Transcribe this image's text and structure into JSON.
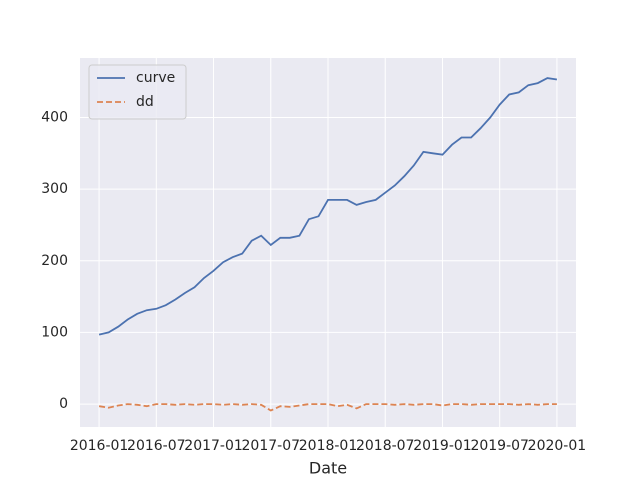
{
  "chart_data": {
    "type": "line",
    "xlabel": "Date",
    "x": [
      "2016-01",
      "2016-02",
      "2016-03",
      "2016-04",
      "2016-05",
      "2016-06",
      "2016-07",
      "2016-08",
      "2016-09",
      "2016-10",
      "2016-11",
      "2016-12",
      "2017-01",
      "2017-02",
      "2017-03",
      "2017-04",
      "2017-05",
      "2017-06",
      "2017-07",
      "2017-08",
      "2017-09",
      "2017-10",
      "2017-11",
      "2017-12",
      "2018-01",
      "2018-02",
      "2018-03",
      "2018-04",
      "2018-05",
      "2018-06",
      "2018-07",
      "2018-08",
      "2018-09",
      "2018-10",
      "2018-11",
      "2018-12",
      "2019-01",
      "2019-02",
      "2019-03",
      "2019-04",
      "2019-05",
      "2019-06",
      "2019-07",
      "2019-08",
      "2019-09",
      "2019-10",
      "2019-11",
      "2019-12",
      "2020-01"
    ],
    "series": [
      {
        "name": "curve",
        "color": "#4c72b0",
        "linestyle": "solid",
        "values": [
          97,
          100,
          108,
          118,
          126,
          131,
          133,
          138,
          146,
          155,
          163,
          176,
          186,
          198,
          205,
          210,
          228,
          235,
          222,
          232,
          232,
          235,
          258,
          262,
          285,
          285,
          285,
          278,
          282,
          285,
          295,
          305,
          318,
          333,
          352,
          350,
          348,
          362,
          372,
          372,
          385,
          400,
          418,
          432,
          435,
          445,
          448,
          455,
          453
        ]
      },
      {
        "name": "dd",
        "color": "#dd8452",
        "linestyle": "dashed",
        "values": [
          -3,
          -5,
          -2,
          0,
          -1,
          -3,
          0,
          0,
          -1,
          0,
          -1,
          0,
          0,
          -1,
          0,
          -1,
          0,
          -1,
          -9,
          -3,
          -4,
          -2,
          0,
          0,
          0,
          -3,
          -1,
          -6,
          0,
          0,
          0,
          -1,
          0,
          -1,
          0,
          0,
          -2,
          0,
          0,
          -1,
          0,
          0,
          0,
          0,
          -1,
          0,
          -1,
          0,
          0
        ]
      }
    ],
    "xlim": [
      "2015-11",
      "2020-03"
    ],
    "xticks": [
      "2016-01",
      "2016-07",
      "2017-01",
      "2017-07",
      "2018-01",
      "2018-07",
      "2019-01",
      "2019-07",
      "2020-01"
    ],
    "ylim": [
      -32,
      483
    ],
    "yticks": [
      0,
      100,
      200,
      300,
      400
    ],
    "grid": true,
    "legend": "upper left"
  }
}
